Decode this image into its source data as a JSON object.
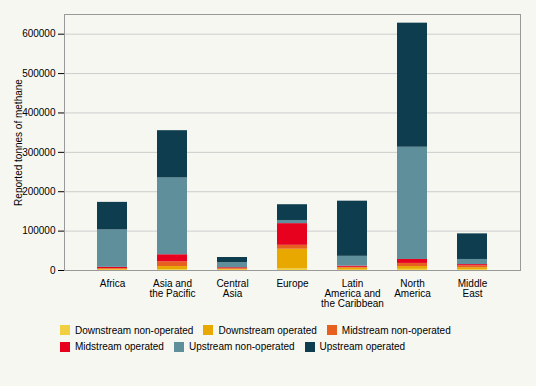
{
  "chart_data": {
    "type": "bar",
    "stacked": true,
    "ylabel": "Reported tonnes of methane",
    "categories": [
      "Africa",
      "Asia and\nthe Pacific",
      "Central\nAsia",
      "Europe",
      "Latin\nAmerica and\nthe Caribbean",
      "North\nAmerica",
      "Middle\nEast"
    ],
    "series": [
      {
        "name": "Downstream non-operated",
        "color": "#f0d040",
        "values": [
          1000,
          2000,
          1000,
          4000,
          1000,
          3000,
          2000
        ]
      },
      {
        "name": "Downstream operated",
        "color": "#e8a800",
        "values": [
          2000,
          8000,
          2000,
          50000,
          5000,
          7000,
          5000
        ]
      },
      {
        "name": "Midstream non-operated",
        "color": "#e86020",
        "values": [
          2000,
          12000,
          2000,
          10000,
          2000,
          8000,
          5000
        ]
      },
      {
        "name": "Midstream operated",
        "color": "#e8001f",
        "values": [
          3000,
          18000,
          2000,
          55000,
          3000,
          10000,
          3000
        ]
      },
      {
        "name": "Upstream non-operated",
        "color": "#5f8f9a",
        "values": [
          95000,
          195000,
          13000,
          8000,
          25000,
          285000,
          13000
        ]
      },
      {
        "name": "Upstream operated",
        "color": "#0d3d4e",
        "values": [
          70000,
          120000,
          13000,
          40000,
          140000,
          315000,
          65000
        ]
      }
    ],
    "ylim": [
      0,
      650000
    ],
    "yticks": [
      0,
      100000,
      200000,
      300000,
      400000,
      500000,
      600000
    ],
    "grid": true,
    "legend": "bottom"
  }
}
